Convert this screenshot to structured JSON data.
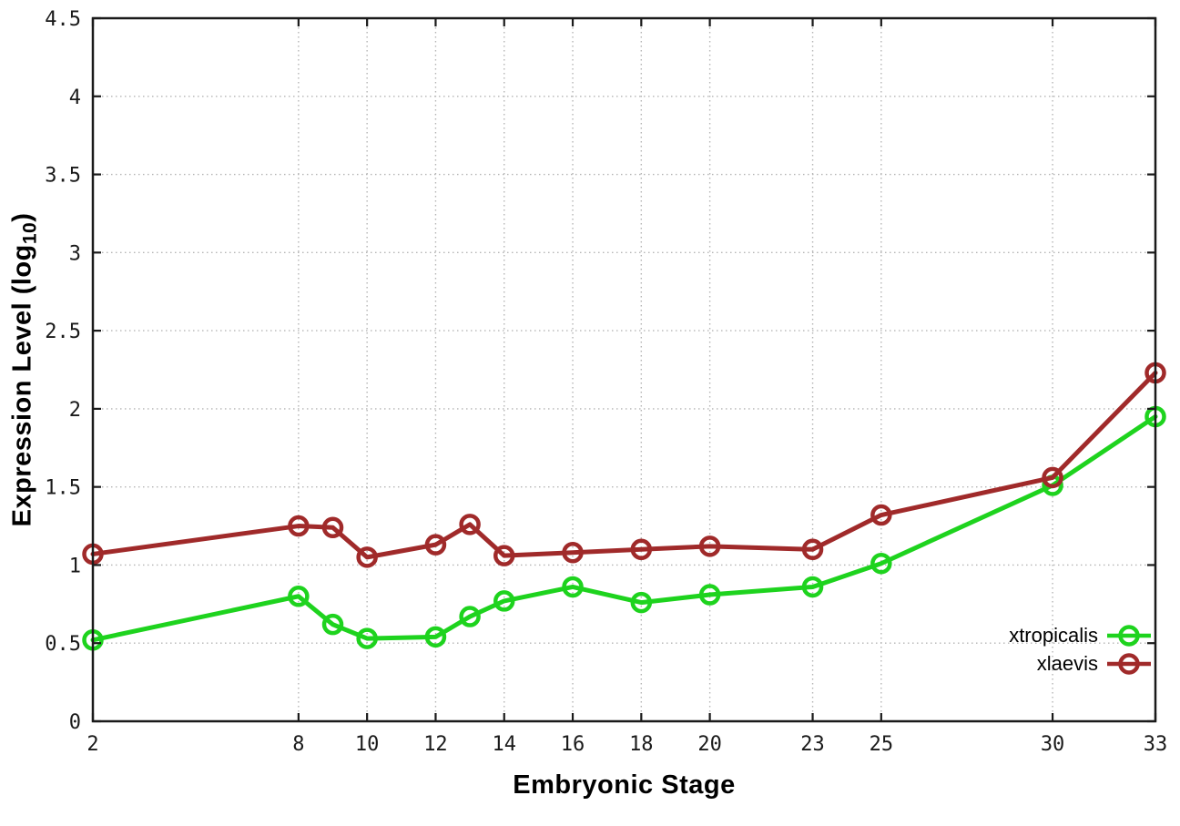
{
  "chart_data": {
    "type": "line",
    "title": "",
    "xlabel": "Embryonic Stage",
    "ylabel": "Expression Level (log10)",
    "ylabel_parts": {
      "prefix": "Expression Level (log",
      "subscript": "10",
      "suffix": ")"
    },
    "x": [
      2,
      8,
      9,
      10,
      12,
      13,
      14,
      16,
      18,
      20,
      23,
      25,
      30,
      33
    ],
    "series": [
      {
        "name": "xtropicalis",
        "color": "#1ed31e",
        "values": [
          0.52,
          0.8,
          0.62,
          0.53,
          0.54,
          0.67,
          0.77,
          0.86,
          0.76,
          0.81,
          0.86,
          1.01,
          1.51,
          1.95
        ]
      },
      {
        "name": "xlaevis",
        "color": "#a02a2a",
        "values": [
          1.07,
          1.25,
          1.24,
          1.05,
          1.13,
          1.26,
          1.06,
          1.08,
          1.1,
          1.12,
          1.1,
          1.32,
          1.56,
          2.23
        ]
      }
    ],
    "x_tick_labels": [
      "2",
      "8",
      "10",
      "12",
      "14",
      "16",
      "18",
      "20",
      "23",
      "25",
      "30",
      "33"
    ],
    "x_tick_values": [
      2,
      8,
      10,
      12,
      14,
      16,
      18,
      20,
      23,
      25,
      30,
      33
    ],
    "y_tick_labels": [
      "0",
      "0.5",
      "1",
      "1.5",
      "2",
      "2.5",
      "3",
      "3.5",
      "4",
      "4.5"
    ],
    "y_tick_values": [
      0,
      0.5,
      1,
      1.5,
      2,
      2.5,
      3,
      3.5,
      4,
      4.5
    ],
    "xlim": [
      2,
      33
    ],
    "ylim": [
      0,
      4.5
    ],
    "grid": true,
    "grid_style": "dotted",
    "legend_position": "inside-bottom-right",
    "colors": {
      "background": "#ffffff",
      "axis": "#1a1a1a",
      "grid": "#b5b5b5",
      "tick_text": "#1a1a1a"
    }
  }
}
